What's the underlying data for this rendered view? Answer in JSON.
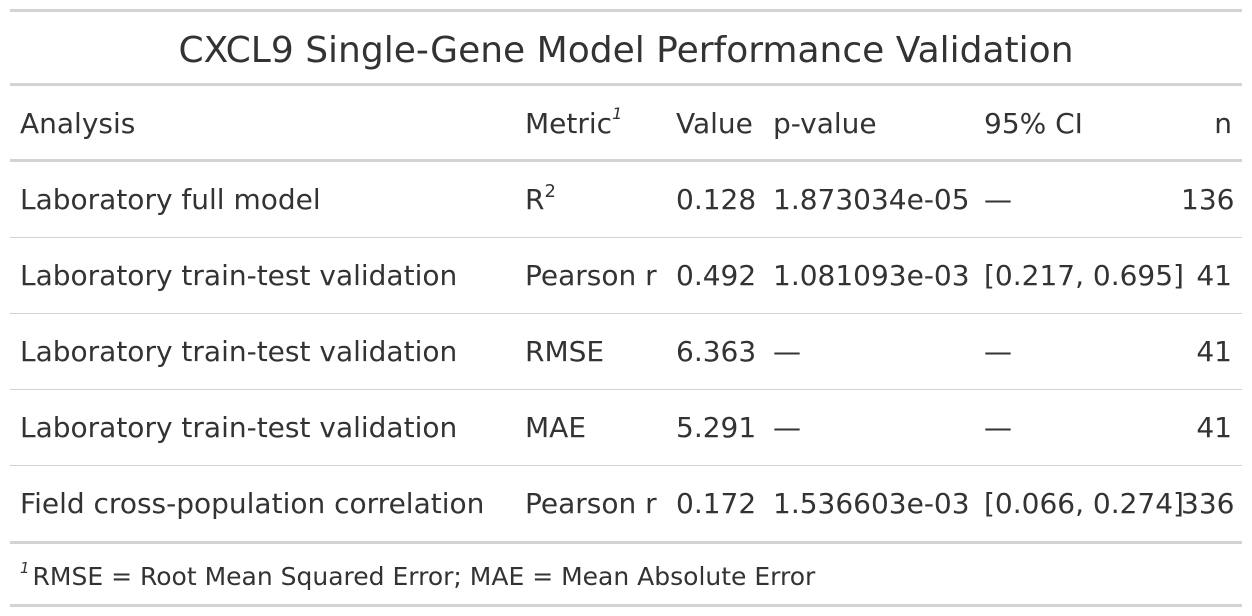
{
  "title": "CXCL9 Single-Gene Model Performance Validation",
  "columns": {
    "analysis": "Analysis",
    "metric": "Metric",
    "metric_footnote_mark": "1",
    "value": "Value",
    "pvalue": "p-value",
    "ci": "95% CI",
    "n": "n"
  },
  "rows": [
    {
      "analysis": "Laboratory full model",
      "metric": "R",
      "metric_sup": "2",
      "value": "0.128",
      "pvalue": "1.873034e-05",
      "ci": "—",
      "n": "136"
    },
    {
      "analysis": "Laboratory train-test validation",
      "metric": "Pearson r",
      "metric_sup": "",
      "value": "0.492",
      "pvalue": "1.081093e-03",
      "ci": "[0.217, 0.695]",
      "n": "41"
    },
    {
      "analysis": "Laboratory train-test validation",
      "metric": "RMSE",
      "metric_sup": "",
      "value": "6.363",
      "pvalue": "—",
      "ci": "—",
      "n": "41"
    },
    {
      "analysis": "Laboratory train-test validation",
      "metric": "MAE",
      "metric_sup": "",
      "value": "5.291",
      "pvalue": "—",
      "ci": "—",
      "n": "41"
    },
    {
      "analysis": "Field cross-population correlation",
      "metric": "Pearson r",
      "metric_sup": "",
      "value": "0.172",
      "pvalue": "1.536603e-03",
      "ci": "[0.066, 0.274]",
      "n": "336"
    }
  ],
  "footnote": {
    "mark": "1",
    "text": "RMSE = Root Mean Squared Error; MAE = Mean Absolute Error"
  }
}
